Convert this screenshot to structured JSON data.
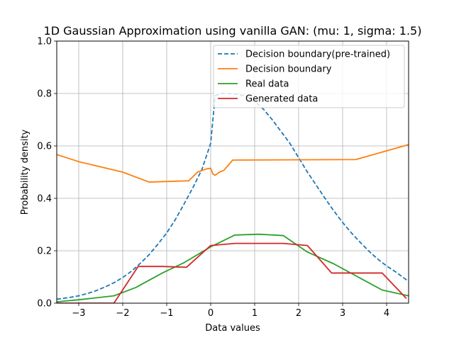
{
  "colors": {
    "pretrained": "#1f77b4",
    "decision": "#ff7f0e",
    "real": "#2ca02c",
    "generated": "#d62728",
    "grid": "#b0b0b0"
  },
  "chart_data": {
    "type": "line",
    "title": "1D Gaussian Approximation using vanilla GAN: (mu:   1, sigma: 1.5)",
    "xlabel": "Data values",
    "ylabel": "Probability density",
    "xlim": [
      -3.5,
      4.5
    ],
    "ylim": [
      0.0,
      1.0
    ],
    "xticks": [
      -3,
      -2,
      -1,
      0,
      1,
      2,
      3,
      4
    ],
    "xtick_labels": [
      "−3",
      "−2",
      "−1",
      "0",
      "1",
      "2",
      "3",
      "4"
    ],
    "yticks": [
      0.0,
      0.2,
      0.4,
      0.6,
      0.8,
      1.0
    ],
    "ytick_labels": [
      "0.0",
      "0.2",
      "0.4",
      "0.6",
      "0.8",
      "1.0"
    ],
    "grid": true,
    "legend_position": "top-right",
    "series": [
      {
        "name": "Decision boundary(pre-trained)",
        "style": "dashed",
        "color_key": "pretrained",
        "x": [
          -3.5,
          -3.2,
          -3.0,
          -2.8,
          -2.6,
          -2.4,
          -2.2,
          -2.0,
          -1.8,
          -1.6,
          -1.4,
          -1.2,
          -1.0,
          -0.8,
          -0.6,
          -0.4,
          -0.2,
          0.0,
          0.05,
          0.1,
          0.2,
          0.4,
          0.6,
          0.8,
          1.0,
          1.2,
          1.4,
          1.6,
          1.8,
          2.0,
          2.2,
          2.4,
          2.6,
          2.8,
          3.0,
          3.2,
          3.4,
          3.6,
          3.8,
          4.0,
          4.2,
          4.5
        ],
        "y": [
          0.015,
          0.022,
          0.028,
          0.037,
          0.048,
          0.062,
          0.078,
          0.098,
          0.122,
          0.152,
          0.185,
          0.225,
          0.268,
          0.32,
          0.38,
          0.442,
          0.51,
          0.61,
          0.7,
          0.79,
          0.8,
          0.8,
          0.797,
          0.79,
          0.77,
          0.74,
          0.7,
          0.655,
          0.61,
          0.555,
          0.5,
          0.45,
          0.4,
          0.352,
          0.308,
          0.268,
          0.232,
          0.198,
          0.168,
          0.142,
          0.12,
          0.083
        ]
      },
      {
        "name": "Decision boundary",
        "style": "solid",
        "color_key": "decision",
        "x": [
          -3.5,
          -3.0,
          -2.0,
          -1.4,
          -0.5,
          -0.3,
          -0.1,
          0.0,
          0.05,
          0.1,
          0.2,
          0.3,
          0.5,
          3.3,
          4.5
        ],
        "y": [
          0.567,
          0.54,
          0.5,
          0.462,
          0.467,
          0.5,
          0.512,
          0.515,
          0.493,
          0.488,
          0.5,
          0.507,
          0.546,
          0.548,
          0.605
        ]
      },
      {
        "name": "Real data",
        "style": "solid",
        "color_key": "real",
        "x": [
          -3.5,
          -3.0,
          -2.2,
          -1.7,
          -1.1,
          -0.6,
          0.0,
          0.55,
          1.1,
          1.65,
          2.2,
          2.8,
          3.35,
          3.9,
          4.5
        ],
        "y": [
          0.005,
          0.013,
          0.028,
          0.06,
          0.115,
          0.155,
          0.215,
          0.26,
          0.263,
          0.258,
          0.195,
          0.15,
          0.1,
          0.05,
          0.028
        ]
      },
      {
        "name": "Generated data",
        "style": "solid",
        "color_key": "generated",
        "x": [
          -3.5,
          -2.2,
          -1.65,
          -1.1,
          -0.55,
          0.0,
          0.55,
          1.1,
          1.65,
          2.2,
          2.75,
          3.3,
          3.9,
          4.45
        ],
        "y": [
          0.0,
          0.0,
          0.14,
          0.14,
          0.137,
          0.22,
          0.228,
          0.228,
          0.228,
          0.22,
          0.115,
          0.115,
          0.115,
          0.018
        ]
      }
    ]
  }
}
